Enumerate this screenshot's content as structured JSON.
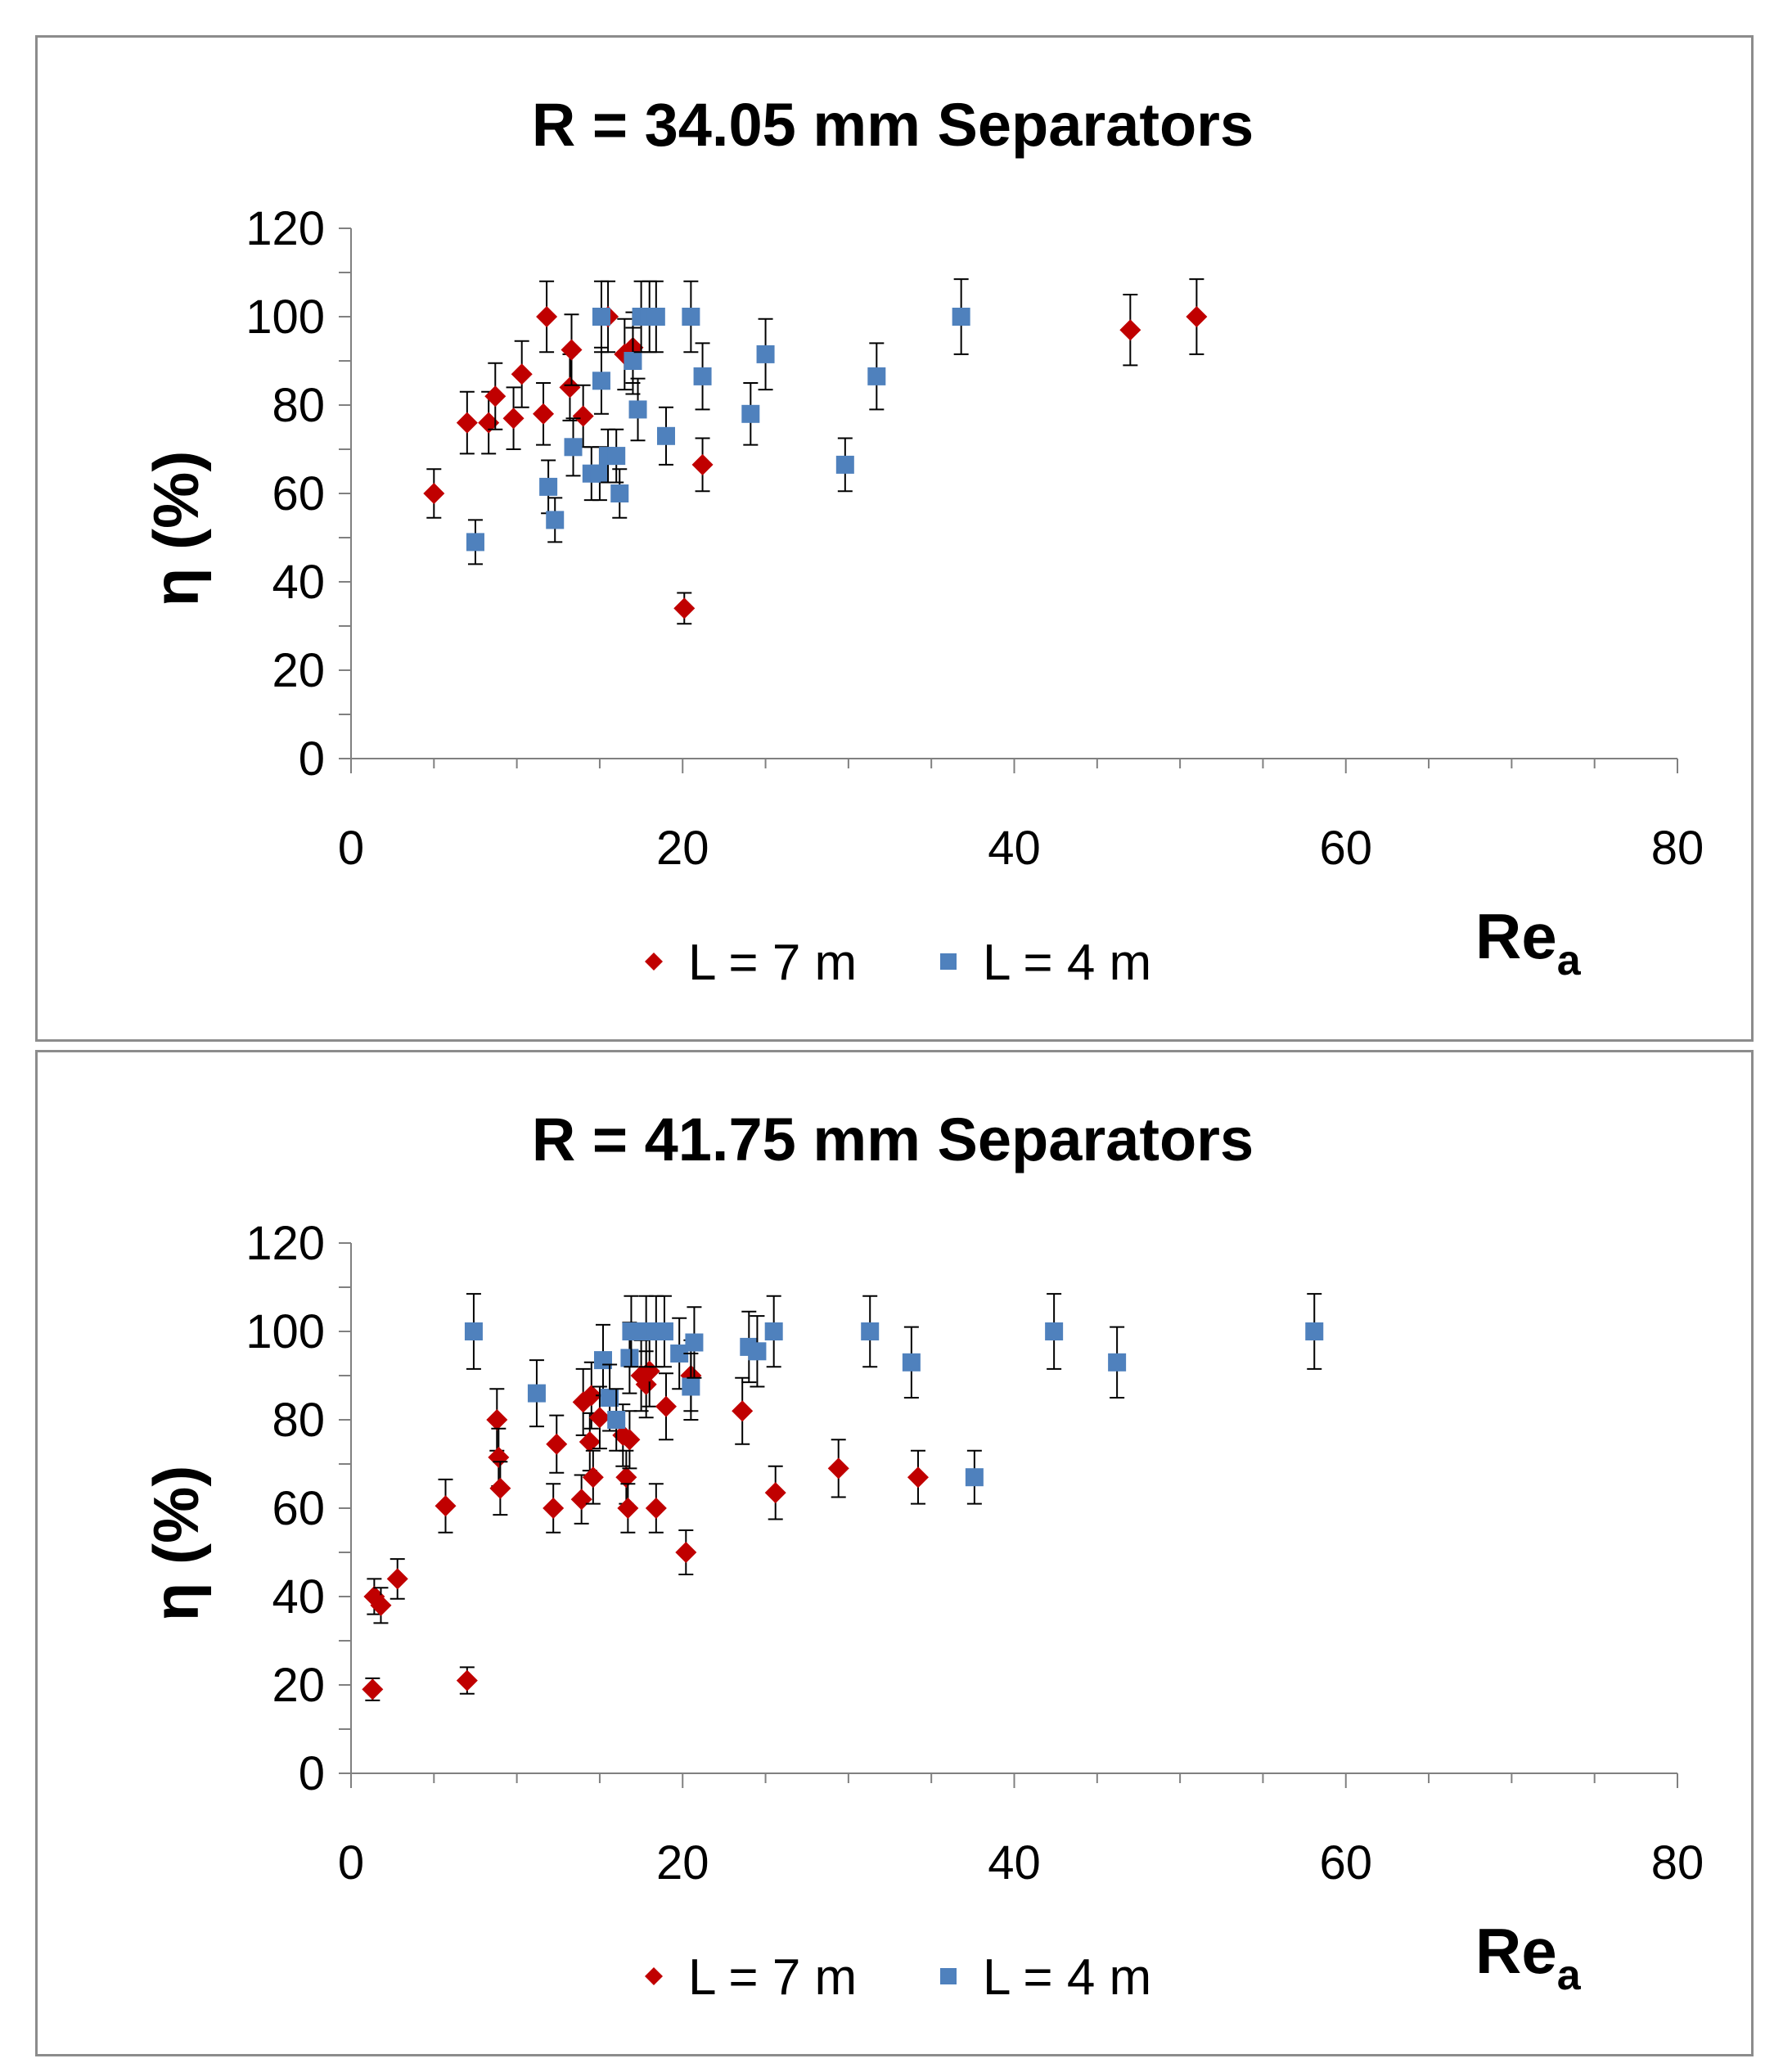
{
  "chart_data": [
    {
      "type": "scatter",
      "title": "R = 34.05 mm Separators",
      "xlabel": "Re",
      "xlabel_sub": "a",
      "ylabel": "η (%)",
      "xlim": [
        0,
        80
      ],
      "ylim": [
        0,
        120
      ],
      "xticks": [
        "0",
        "20",
        "40",
        "60",
        "80"
      ],
      "yticks": [
        "0",
        "20",
        "40",
        "60",
        "80",
        "100",
        "120"
      ],
      "legend": [
        "L = 7 m",
        "L = 4 m"
      ],
      "series": [
        {
          "name": "L = 7 m",
          "color": "#c00000",
          "marker": "diamond",
          "points": [
            {
              "x": 5,
              "y": 60,
              "err": 5.5
            },
            {
              "x": 7,
              "y": 76,
              "err": 7
            },
            {
              "x": 8.3,
              "y": 76,
              "err": 7
            },
            {
              "x": 8.7,
              "y": 82,
              "err": 7.5
            },
            {
              "x": 9.8,
              "y": 77,
              "err": 7
            },
            {
              "x": 10.3,
              "y": 87,
              "err": 7.5
            },
            {
              "x": 11.6,
              "y": 78,
              "err": 7
            },
            {
              "x": 11.8,
              "y": 100,
              "err": 8
            },
            {
              "x": 13.2,
              "y": 84,
              "err": 7.5
            },
            {
              "x": 13.3,
              "y": 92.5,
              "err": 8
            },
            {
              "x": 14,
              "y": 77.5,
              "err": 7
            },
            {
              "x": 15.5,
              "y": 100,
              "err": 8
            },
            {
              "x": 16.5,
              "y": 91.5,
              "err": 8
            },
            {
              "x": 17,
              "y": 93,
              "err": 8
            },
            {
              "x": 20.1,
              "y": 34,
              "err": 3.5
            },
            {
              "x": 21.2,
              "y": 66.5,
              "err": 6
            },
            {
              "x": 47,
              "y": 97,
              "err": 8
            },
            {
              "x": 51,
              "y": 100,
              "err": 8.5
            }
          ]
        },
        {
          "name": "L = 4 m",
          "color": "#4f81bd",
          "marker": "square",
          "points": [
            {
              "x": 7.5,
              "y": 49,
              "err": 5
            },
            {
              "x": 11.9,
              "y": 61.5,
              "err": 6
            },
            {
              "x": 12.3,
              "y": 54,
              "err": 5
            },
            {
              "x": 13.4,
              "y": 70.5,
              "err": 6.5
            },
            {
              "x": 14.5,
              "y": 64.5,
              "err": 6
            },
            {
              "x": 15,
              "y": 64.5,
              "err": 6
            },
            {
              "x": 15.1,
              "y": 100,
              "err": 8
            },
            {
              "x": 15.1,
              "y": 85.5,
              "err": 7.5
            },
            {
              "x": 15.5,
              "y": 68.5,
              "err": 6
            },
            {
              "x": 16,
              "y": 68.5,
              "err": 6
            },
            {
              "x": 16.2,
              "y": 60,
              "err": 5.5
            },
            {
              "x": 17,
              "y": 90,
              "err": 7.5
            },
            {
              "x": 17.3,
              "y": 79,
              "err": 7
            },
            {
              "x": 17.5,
              "y": 100,
              "err": 8
            },
            {
              "x": 18,
              "y": 100,
              "err": 8
            },
            {
              "x": 18.4,
              "y": 100,
              "err": 8
            },
            {
              "x": 19,
              "y": 73,
              "err": 6.5
            },
            {
              "x": 20.5,
              "y": 100,
              "err": 8
            },
            {
              "x": 21.2,
              "y": 86.5,
              "err": 7.5
            },
            {
              "x": 24.1,
              "y": 78,
              "err": 7
            },
            {
              "x": 25,
              "y": 91.5,
              "err": 8
            },
            {
              "x": 29.8,
              "y": 66.5,
              "err": 6
            },
            {
              "x": 31.7,
              "y": 86.5,
              "err": 7.5
            },
            {
              "x": 36.8,
              "y": 100,
              "err": 8.5
            }
          ]
        }
      ]
    },
    {
      "type": "scatter",
      "title": "R = 41.75 mm Separators",
      "xlabel": "Re",
      "xlabel_sub": "a",
      "ylabel": "η (%)",
      "xlim": [
        0,
        80
      ],
      "ylim": [
        0,
        120
      ],
      "xticks": [
        "0",
        "20",
        "40",
        "60",
        "80"
      ],
      "yticks": [
        "0",
        "20",
        "40",
        "60",
        "80",
        "100",
        "120"
      ],
      "legend": [
        "L = 7 m",
        "L = 4 m"
      ],
      "series": [
        {
          "name": "L = 7 m",
          "color": "#c00000",
          "marker": "diamond",
          "points": [
            {
              "x": 1.3,
              "y": 19,
              "err": 2.5
            },
            {
              "x": 1.4,
              "y": 40,
              "err": 4
            },
            {
              "x": 1.8,
              "y": 38,
              "err": 4
            },
            {
              "x": 2.8,
              "y": 44,
              "err": 4.5
            },
            {
              "x": 5.7,
              "y": 60.5,
              "err": 6
            },
            {
              "x": 7,
              "y": 21,
              "err": 3
            },
            {
              "x": 8.8,
              "y": 80,
              "err": 7
            },
            {
              "x": 8.9,
              "y": 71.5,
              "err": 6.5
            },
            {
              "x": 9,
              "y": 64.5,
              "err": 6
            },
            {
              "x": 12.2,
              "y": 60,
              "err": 5.5
            },
            {
              "x": 12.4,
              "y": 74.5,
              "err": 6.5
            },
            {
              "x": 13.9,
              "y": 62,
              "err": 5.5
            },
            {
              "x": 14,
              "y": 84,
              "err": 7.5
            },
            {
              "x": 14.4,
              "y": 75,
              "err": 6.5
            },
            {
              "x": 14.5,
              "y": 85.5,
              "err": 7.5
            },
            {
              "x": 14.6,
              "y": 67,
              "err": 6
            },
            {
              "x": 15,
              "y": 80.5,
              "err": 7
            },
            {
              "x": 16.4,
              "y": 76.5,
              "err": 7
            },
            {
              "x": 16.6,
              "y": 67,
              "err": 6
            },
            {
              "x": 16.7,
              "y": 60,
              "err": 5.5
            },
            {
              "x": 16.8,
              "y": 75.5,
              "err": 6.5
            },
            {
              "x": 17.5,
              "y": 90,
              "err": 8
            },
            {
              "x": 17.8,
              "y": 88,
              "err": 7.5
            },
            {
              "x": 18,
              "y": 91,
              "err": 8
            },
            {
              "x": 18.4,
              "y": 60,
              "err": 5.5
            },
            {
              "x": 19,
              "y": 83,
              "err": 7.5
            },
            {
              "x": 20.2,
              "y": 50,
              "err": 5
            },
            {
              "x": 20.5,
              "y": 90,
              "err": 8
            },
            {
              "x": 23.6,
              "y": 82,
              "err": 7.5
            },
            {
              "x": 25.6,
              "y": 63.5,
              "err": 6
            },
            {
              "x": 29.4,
              "y": 69,
              "err": 6.5
            },
            {
              "x": 34.2,
              "y": 67,
              "err": 6
            }
          ]
        },
        {
          "name": "L = 4 m",
          "color": "#4f81bd",
          "marker": "square",
          "points": [
            {
              "x": 7.4,
              "y": 100,
              "err": 8.5
            },
            {
              "x": 11.2,
              "y": 86,
              "err": 7.5
            },
            {
              "x": 15.2,
              "y": 93.5,
              "err": 8
            },
            {
              "x": 15.6,
              "y": 85,
              "err": 7.5
            },
            {
              "x": 16,
              "y": 80,
              "err": 7
            },
            {
              "x": 16.8,
              "y": 94,
              "err": 8
            },
            {
              "x": 16.9,
              "y": 100,
              "err": 8
            },
            {
              "x": 17.8,
              "y": 100,
              "err": 8
            },
            {
              "x": 18.4,
              "y": 100,
              "err": 8
            },
            {
              "x": 18.9,
              "y": 100,
              "err": 8
            },
            {
              "x": 19.8,
              "y": 95,
              "err": 8
            },
            {
              "x": 20.5,
              "y": 87.5,
              "err": 7.5
            },
            {
              "x": 20.7,
              "y": 97.5,
              "err": 8
            },
            {
              "x": 24,
              "y": 96.5,
              "err": 8
            },
            {
              "x": 24.5,
              "y": 95.5,
              "err": 8
            },
            {
              "x": 25.5,
              "y": 100,
              "err": 8
            },
            {
              "x": 31.3,
              "y": 100,
              "err": 8
            },
            {
              "x": 33.8,
              "y": 93,
              "err": 8
            },
            {
              "x": 37.6,
              "y": 67,
              "err": 6
            },
            {
              "x": 42.4,
              "y": 100,
              "err": 8.5
            },
            {
              "x": 46.2,
              "y": 93,
              "err": 8
            },
            {
              "x": 58.1,
              "y": 100,
              "err": 8.5
            }
          ]
        }
      ]
    }
  ]
}
